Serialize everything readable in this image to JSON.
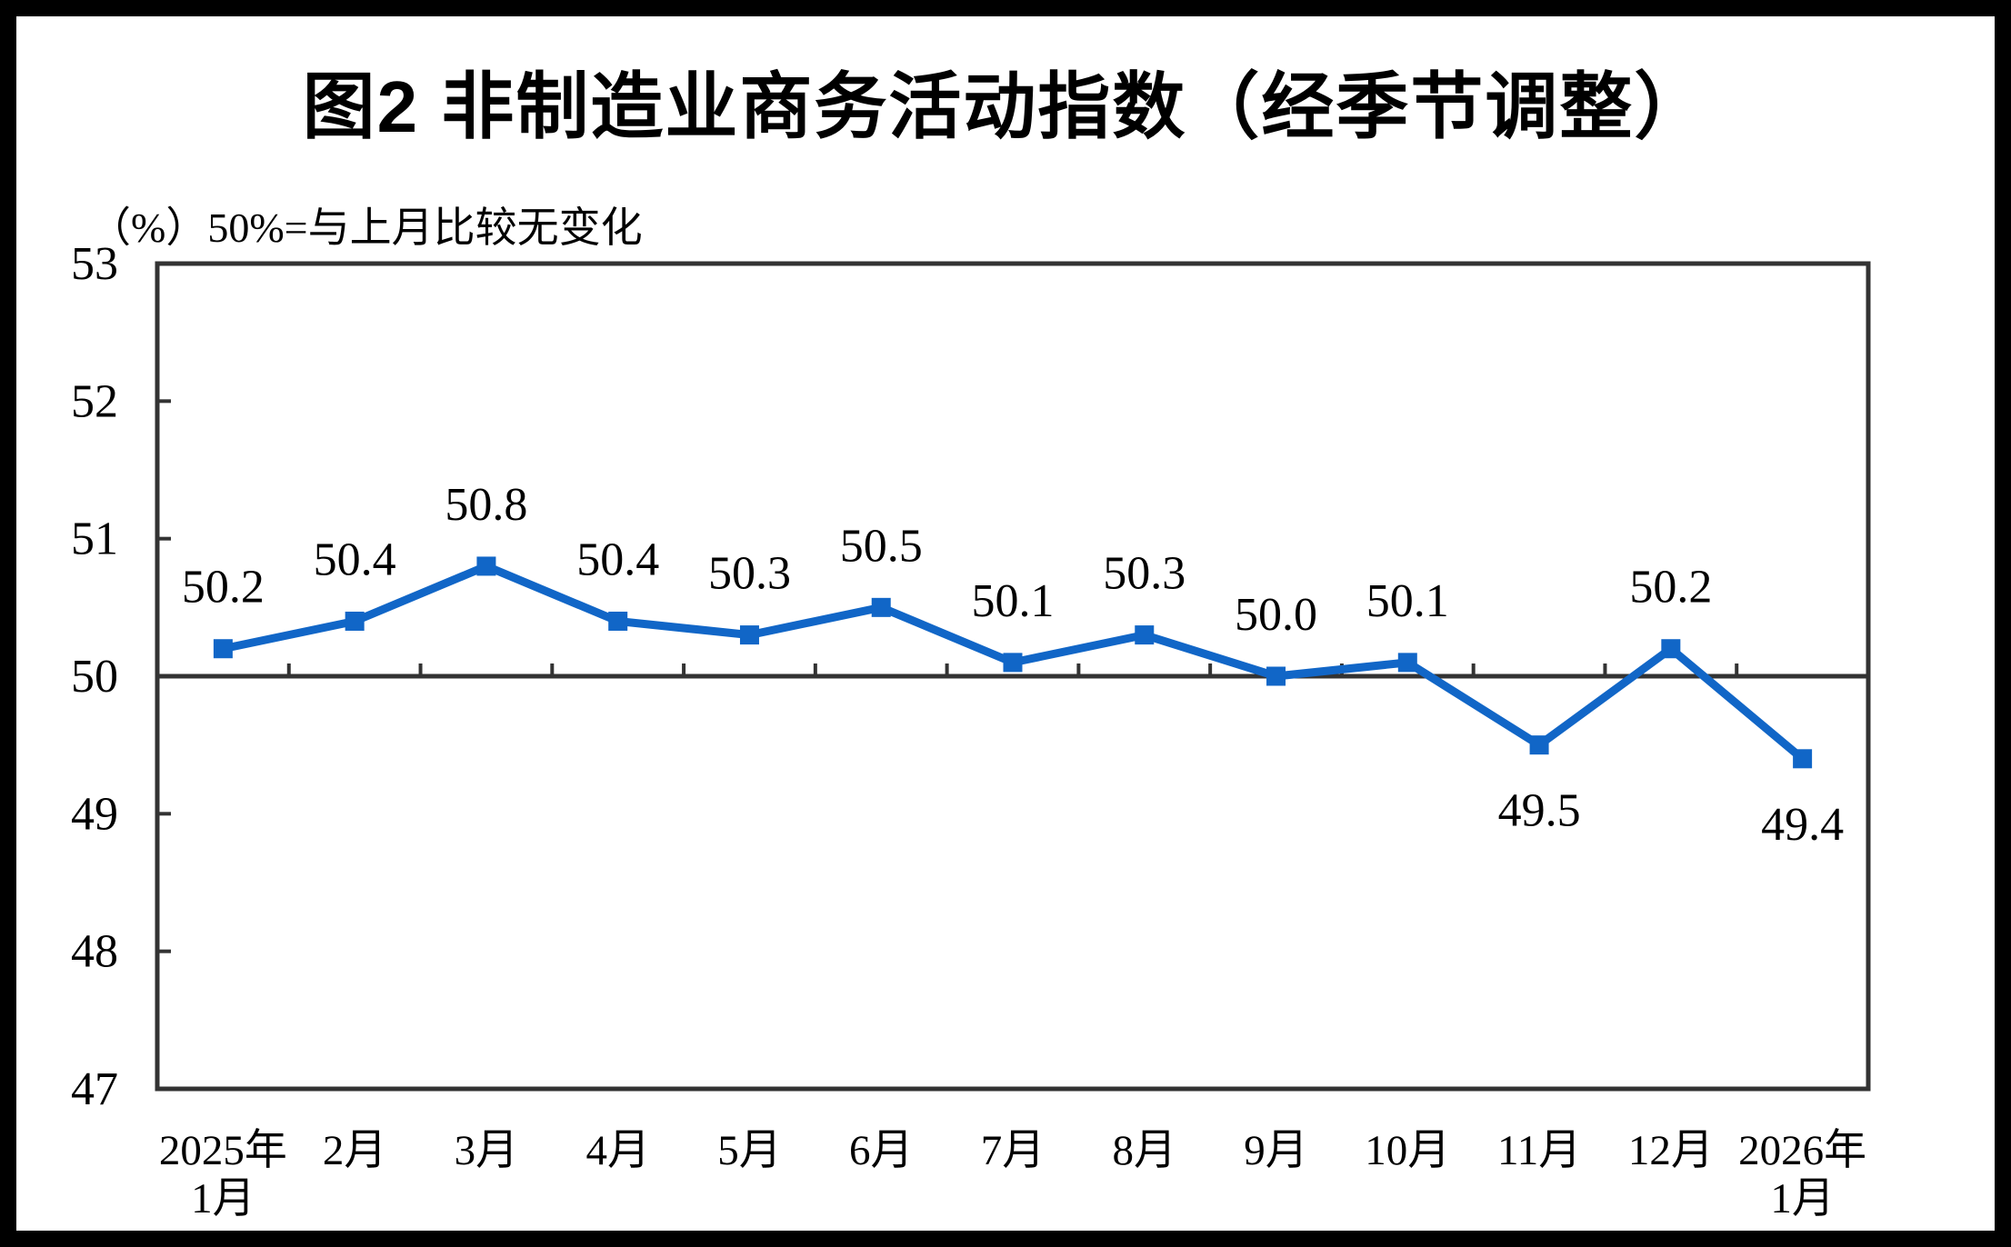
{
  "chart_data": {
    "type": "line",
    "title": "图2 非制造业商务活动指数（经季节调整）",
    "unit_note": "（%）50%=与上月比较无变化",
    "categories": [
      "2025年\n1月",
      "2月",
      "3月",
      "4月",
      "5月",
      "6月",
      "7月",
      "8月",
      "9月",
      "10月",
      "11月",
      "12月",
      "2026年\n1月"
    ],
    "values": [
      50.2,
      50.4,
      50.8,
      50.4,
      50.3,
      50.5,
      50.1,
      50.3,
      50.0,
      50.1,
      49.5,
      50.2,
      49.4
    ],
    "data_labels": [
      "50.2",
      "50.4",
      "50.8",
      "50.4",
      "50.3",
      "50.5",
      "50.1",
      "50.3",
      "50.0",
      "50.1",
      "49.5",
      "50.2",
      "49.4"
    ],
    "label_side": [
      "above",
      "above",
      "above",
      "above",
      "above",
      "above",
      "above",
      "above",
      "above",
      "above",
      "below",
      "above",
      "below"
    ],
    "ylim": [
      47,
      53
    ],
    "yticks": [
      53,
      52,
      51,
      50,
      49,
      48,
      47
    ],
    "reference_line": 50,
    "grid": false,
    "legend": "none",
    "marker": "square",
    "colors": {
      "line": "#1166C7",
      "axis": "#333333",
      "text": "#000000",
      "frame": "#000000",
      "background": "#FFFFFF"
    }
  }
}
